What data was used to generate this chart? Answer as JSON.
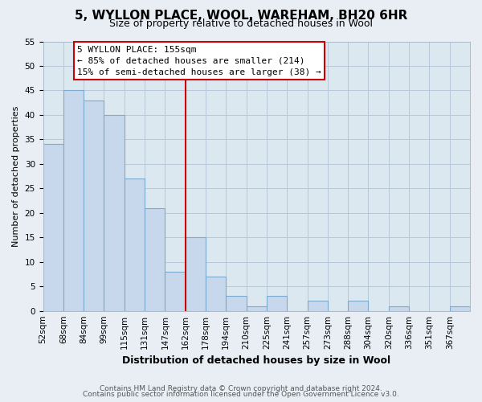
{
  "title": "5, WYLLON PLACE, WOOL, WAREHAM, BH20 6HR",
  "subtitle": "Size of property relative to detached houses in Wool",
  "xlabel": "Distribution of detached houses by size in Wool",
  "ylabel": "Number of detached properties",
  "bin_labels": [
    "52sqm",
    "68sqm",
    "84sqm",
    "99sqm",
    "115sqm",
    "131sqm",
    "147sqm",
    "162sqm",
    "178sqm",
    "194sqm",
    "210sqm",
    "225sqm",
    "241sqm",
    "257sqm",
    "273sqm",
    "288sqm",
    "304sqm",
    "320sqm",
    "336sqm",
    "351sqm",
    "367sqm"
  ],
  "bar_heights": [
    34,
    45,
    43,
    40,
    27,
    21,
    8,
    15,
    7,
    3,
    1,
    3,
    0,
    2,
    0,
    2,
    0,
    1,
    0,
    0,
    1
  ],
  "bar_color": "#c8d8ec",
  "bar_edge_color": "#7aaace",
  "vline_x_index": 7,
  "vline_color": "#cc0000",
  "annotation_title": "5 WYLLON PLACE: 155sqm",
  "annotation_line1": "← 85% of detached houses are smaller (214)",
  "annotation_line2": "15% of semi-detached houses are larger (38) →",
  "annotation_box_facecolor": "#ffffff",
  "annotation_box_edgecolor": "#cc0000",
  "ylim": [
    0,
    55
  ],
  "yticks": [
    0,
    5,
    10,
    15,
    20,
    25,
    30,
    35,
    40,
    45,
    50,
    55
  ],
  "footer_line1": "Contains HM Land Registry data © Crown copyright and database right 2024.",
  "footer_line2": "Contains public sector information licensed under the Open Government Licence v3.0.",
  "bg_color": "#e8eef4",
  "plot_bg_color": "#dce8f0",
  "grid_color": "#b8c8d8",
  "title_fontsize": 11,
  "subtitle_fontsize": 9,
  "xlabel_fontsize": 9,
  "ylabel_fontsize": 8,
  "tick_fontsize": 7.5,
  "annot_fontsize": 8,
  "footer_fontsize": 6.5
}
